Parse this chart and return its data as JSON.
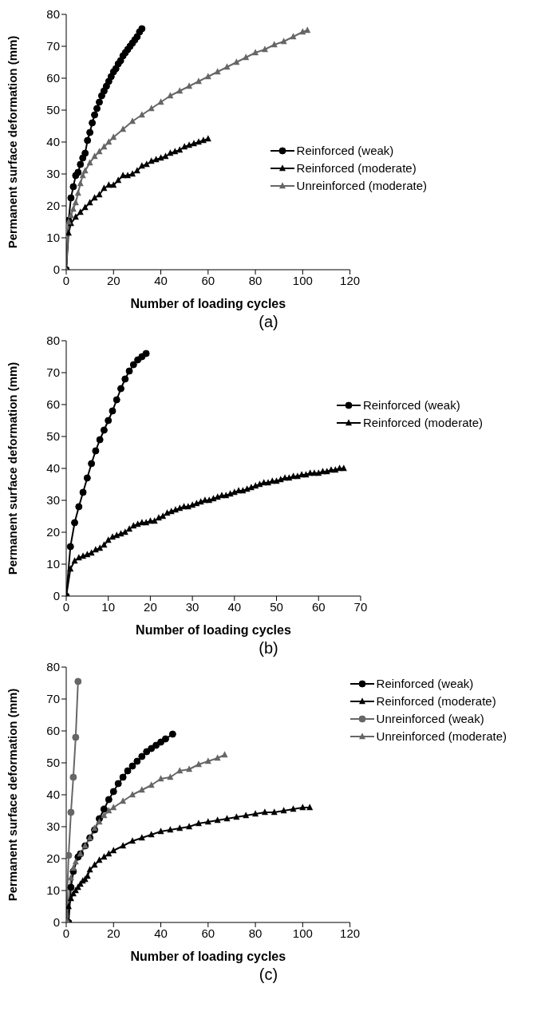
{
  "chart_data": [
    {
      "type": "line",
      "xlabel": "Number of loading cycles",
      "ylabel": "Permanent surface deformation (mm)",
      "annotations": [
        "(a)"
      ],
      "xlim": [
        0,
        120
      ],
      "xticks": [
        0,
        20,
        40,
        60,
        80,
        100,
        120
      ],
      "ylim": [
        0,
        80
      ],
      "yticks": [
        0,
        10,
        20,
        30,
        40,
        50,
        60,
        70,
        80
      ],
      "grid": false,
      "legend": "bottom right",
      "line_style": "solid",
      "series": [
        {
          "name": "Reinforced (weak)",
          "color": "#000000",
          "marker": "circle",
          "x": [
            0,
            1,
            2,
            3,
            4,
            5,
            6,
            7,
            8,
            9,
            10,
            11,
            12,
            13,
            14,
            15,
            16,
            17,
            18,
            19,
            20,
            21,
            22,
            23,
            24,
            25,
            26,
            27,
            28,
            29,
            30,
            31,
            32
          ],
          "values": [
            0,
            15.5,
            22.5,
            26,
            29.5,
            30.5,
            33,
            35,
            36.5,
            40.5,
            43,
            46,
            48.5,
            50.5,
            52.5,
            54.5,
            56,
            57.5,
            59,
            60.5,
            62,
            63,
            64.5,
            65.5,
            67,
            68,
            69,
            70,
            71,
            72,
            73,
            74.5,
            75.5
          ]
        },
        {
          "name": "Reinforced (moderate)",
          "color": "#000000",
          "marker": "triangle",
          "x": [
            0,
            1,
            2,
            4,
            6,
            8,
            10,
            12,
            14,
            16,
            18,
            20,
            22,
            24,
            26,
            28,
            30,
            32,
            34,
            36,
            38,
            40,
            42,
            44,
            46,
            48,
            50,
            52,
            54,
            56,
            58,
            60
          ],
          "values": [
            0,
            11.5,
            14.5,
            16.5,
            18,
            19.5,
            21,
            22.5,
            23.5,
            25.5,
            26.5,
            26.5,
            28,
            29.5,
            29.5,
            30,
            31,
            32.5,
            33,
            34,
            34.5,
            35,
            35.5,
            36.5,
            37,
            37.5,
            38.5,
            39,
            39.5,
            40,
            40.5,
            41
          ]
        },
        {
          "name": "Unreinforced (moderate)",
          "color": "#666666",
          "marker": "triangle",
          "x": [
            0,
            1,
            2,
            3,
            4,
            5,
            6,
            7,
            8,
            10,
            12,
            14,
            16,
            18,
            20,
            24,
            28,
            32,
            36,
            40,
            44,
            48,
            52,
            56,
            60,
            64,
            68,
            72,
            76,
            80,
            84,
            88,
            92,
            96,
            100,
            102
          ],
          "values": [
            0,
            15,
            17,
            19,
            21,
            24,
            27,
            29.5,
            31,
            33.5,
            35.5,
            37,
            38.5,
            40,
            41.5,
            44,
            46.5,
            48.5,
            50.5,
            52.5,
            54.5,
            56,
            57.5,
            59,
            60.5,
            62,
            63.5,
            65,
            66.5,
            68,
            69,
            70.5,
            71.5,
            73,
            74.5,
            75
          ]
        }
      ]
    },
    {
      "type": "line",
      "xlabel": "Number of loading cycles",
      "ylabel": "Permanent surface deformation (mm)",
      "annotations": [
        "(b)"
      ],
      "xlim": [
        0,
        70
      ],
      "xticks": [
        0,
        10,
        20,
        30,
        40,
        50,
        60,
        70
      ],
      "ylim": [
        0,
        80
      ],
      "yticks": [
        0,
        10,
        20,
        30,
        40,
        50,
        60,
        70,
        80
      ],
      "grid": false,
      "legend": "right",
      "line_style": "solid",
      "series": [
        {
          "name": "Reinforced (weak)",
          "color": "#000000",
          "marker": "circle",
          "x": [
            0,
            1,
            2,
            3,
            4,
            5,
            6,
            7,
            8,
            9,
            10,
            11,
            12,
            13,
            14,
            15,
            16,
            17,
            18,
            19
          ],
          "values": [
            0,
            15.5,
            23,
            28,
            32.5,
            37,
            41.5,
            45.5,
            49,
            52,
            55,
            58,
            61.5,
            65,
            68,
            70.5,
            72.5,
            74,
            75,
            76
          ]
        },
        {
          "name": "Reinforced (moderate)",
          "color": "#000000",
          "marker": "triangle",
          "x": [
            0,
            1,
            2,
            3,
            4,
            5,
            6,
            7,
            8,
            9,
            10,
            11,
            12,
            13,
            14,
            15,
            16,
            17,
            18,
            19,
            20,
            21,
            22,
            23,
            24,
            25,
            26,
            27,
            28,
            29,
            30,
            31,
            32,
            33,
            34,
            35,
            36,
            37,
            38,
            39,
            40,
            41,
            42,
            43,
            44,
            45,
            46,
            47,
            48,
            49,
            50,
            51,
            52,
            53,
            54,
            55,
            56,
            57,
            58,
            59,
            60,
            61,
            62,
            63,
            64,
            65,
            66
          ],
          "values": [
            0,
            8.5,
            11,
            12,
            12.5,
            13,
            13.5,
            14.5,
            15,
            16,
            17.5,
            18.5,
            19,
            19.5,
            20,
            21,
            22,
            22.5,
            23,
            23,
            23.5,
            23.5,
            24.5,
            25,
            26,
            26.5,
            27,
            27.5,
            28,
            28,
            28.5,
            29,
            29.5,
            30,
            30,
            30.5,
            31,
            31.5,
            31.5,
            32,
            32.5,
            33,
            33,
            33.5,
            34,
            34.5,
            35,
            35.5,
            35.5,
            36,
            36,
            36.5,
            37,
            37,
            37.5,
            37.5,
            38,
            38,
            38.5,
            38.5,
            38.5,
            39,
            39,
            39.5,
            39.5,
            40,
            40
          ]
        }
      ]
    },
    {
      "type": "line",
      "xlabel": "Number of loading cycles",
      "ylabel": "Permanent surface deformation (mm)",
      "annotations": [
        "(c)"
      ],
      "xlim": [
        0,
        120
      ],
      "xticks": [
        0,
        20,
        40,
        60,
        80,
        100,
        120
      ],
      "ylim": [
        0,
        80
      ],
      "yticks": [
        0,
        10,
        20,
        30,
        40,
        50,
        60,
        70,
        80
      ],
      "grid": false,
      "legend": "top right",
      "line_style": "solid",
      "series": [
        {
          "name": "Reinforced (weak)",
          "color": "#000000",
          "marker": "circle",
          "x": [
            0,
            1,
            2,
            3,
            5,
            6,
            8,
            10,
            12,
            14,
            16,
            18,
            20,
            22,
            24,
            26,
            28,
            30,
            32,
            34,
            36,
            38,
            40,
            42,
            45
          ],
          "values": [
            0,
            0,
            11,
            16,
            20.5,
            21.5,
            24,
            26.5,
            29,
            32.5,
            35.5,
            38.5,
            41,
            43.5,
            45.5,
            47.5,
            49,
            50.5,
            52,
            53.5,
            54.5,
            55.5,
            56.5,
            57.5,
            59
          ]
        },
        {
          "name": "Reinforced (moderate)",
          "color": "#000000",
          "marker": "triangle",
          "x": [
            0,
            1,
            2,
            3,
            4,
            5,
            6,
            7,
            8,
            9,
            10,
            12,
            14,
            16,
            18,
            20,
            24,
            28,
            32,
            36,
            40,
            44,
            48,
            52,
            56,
            60,
            64,
            68,
            72,
            76,
            80,
            84,
            88,
            92,
            96,
            100,
            103
          ],
          "values": [
            0,
            5,
            7.5,
            9,
            10,
            11,
            12,
            13,
            13.5,
            14.5,
            16.5,
            18,
            19.5,
            20.5,
            21.5,
            22.5,
            24,
            25.5,
            26.5,
            27.5,
            28.5,
            29,
            29.5,
            30,
            31,
            31.5,
            32,
            32.5,
            33,
            33.5,
            34,
            34.5,
            34.5,
            35,
            35.5,
            36,
            36
          ]
        },
        {
          "name": "Unreinforced (weak)",
          "color": "#666666",
          "marker": "circle",
          "x": [
            0,
            1,
            2,
            3,
            4,
            5
          ],
          "values": [
            0,
            21,
            34.5,
            45.5,
            58,
            75.5
          ]
        },
        {
          "name": "Unreinforced (moderate)",
          "color": "#666666",
          "marker": "triangle",
          "x": [
            0,
            2,
            3,
            4,
            6,
            8,
            10,
            12,
            14,
            16,
            18,
            20,
            24,
            28,
            32,
            36,
            40,
            44,
            48,
            52,
            56,
            60,
            64,
            67
          ],
          "values": [
            0,
            14,
            17,
            19,
            21.5,
            24,
            26.5,
            29.5,
            31.5,
            33.5,
            35,
            36,
            38,
            40,
            41.5,
            43,
            45,
            45.5,
            47.5,
            48,
            49.5,
            50.5,
            51.5,
            52.5
          ]
        }
      ]
    }
  ]
}
